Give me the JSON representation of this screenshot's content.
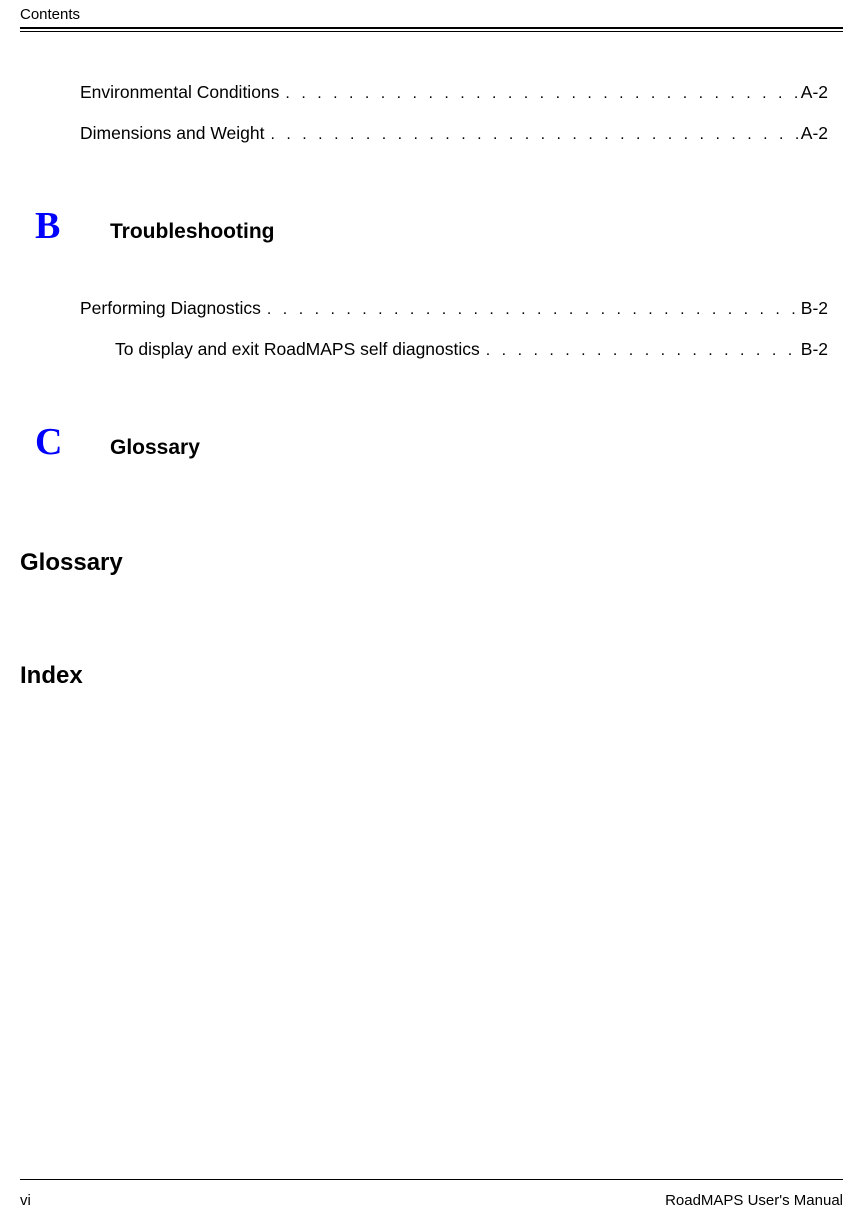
{
  "header": {
    "label": "Contents"
  },
  "entries_a": [
    {
      "label": "Environmental Conditions",
      "page": "A-2",
      "indent": "normal"
    },
    {
      "label": "Dimensions and Weight",
      "page": "A-2",
      "indent": "normal"
    }
  ],
  "section_b": {
    "letter": "B",
    "title": "Troubleshooting"
  },
  "entries_b": [
    {
      "label": "Performing Diagnostics",
      "page": "B-2",
      "indent": "normal"
    },
    {
      "label": "To display and exit RoadMAPS self diagnostics",
      "page": "B-2",
      "indent": "sub"
    }
  ],
  "section_c": {
    "letter": "C",
    "title": "Glossary"
  },
  "standalone": [
    "Glossary",
    "Index"
  ],
  "footer": {
    "left": "vi",
    "right": "RoadMAPS User's Manual"
  },
  "colors": {
    "link": "#0000ff",
    "text": "#000000",
    "background": "#ffffff"
  },
  "dots": ". . . . . . . . . . . . . . . . . . . . . . . . . . . . . . . . . . . . . . . . . . . . . . . . . . . . . . . . . . . . . . . . . . . . . . . . . . . . . . . . . . . . . . . . . . . . . . . . . . . ."
}
